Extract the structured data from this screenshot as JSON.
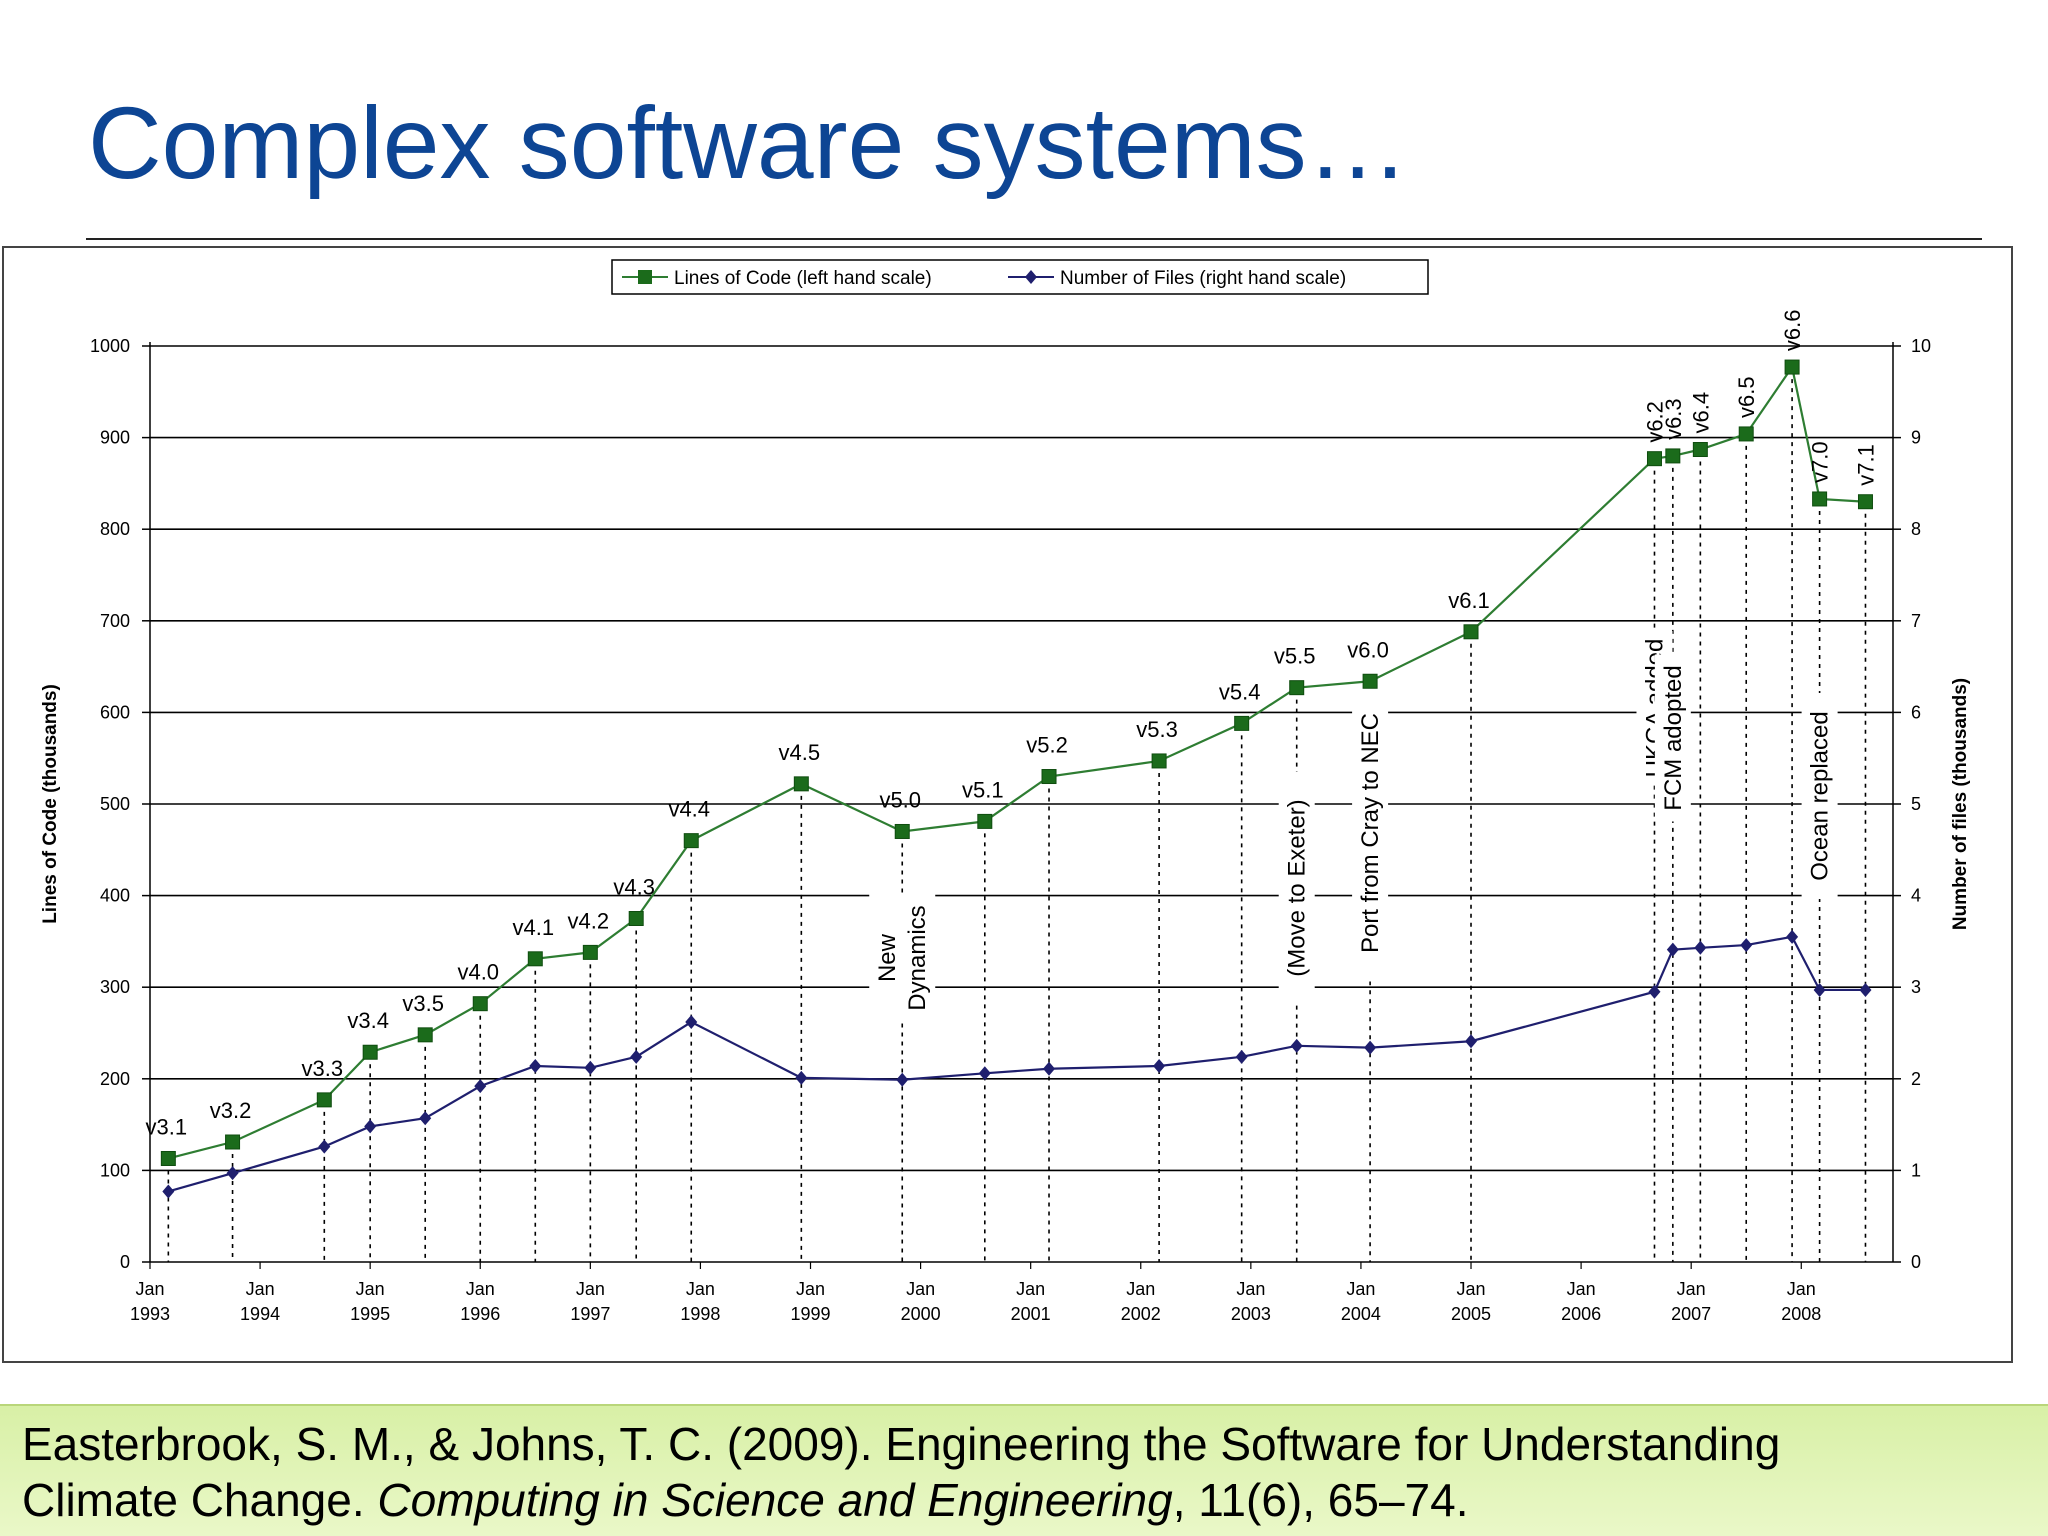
{
  "slide": {
    "title": "Complex software systems…"
  },
  "citation": {
    "line1": "Easterbrook, S. M., & Johns, T. C. (2009). Engineering the Software for Understanding",
    "line2_prefix": "Climate Change. ",
    "line2_journal": "Computing in Science and Engineering",
    "line2_suffix": ", 11(6), 65–74."
  },
  "chart_data": {
    "type": "line",
    "ylabel_left": "Lines of Code (thousands)",
    "ylabel_right": "Number of files (thousands)",
    "y_left_lim": [
      0,
      1000
    ],
    "y_left_ticks": [
      "0",
      "100",
      "200",
      "300",
      "400",
      "500",
      "600",
      "700",
      "800",
      "900",
      "1000"
    ],
    "y_right_lim": [
      0,
      10
    ],
    "y_right_ticks": [
      "0",
      "1",
      "2",
      "3",
      "4",
      "5",
      "6",
      "7",
      "8",
      "9",
      "10"
    ],
    "x_lim": [
      "1993-01",
      "2008-11"
    ],
    "x_ticks": [
      {
        "date": "1993-01",
        "line1": "Jan",
        "line2": "1993"
      },
      {
        "date": "1994-01",
        "line1": "Jan",
        "line2": "1994"
      },
      {
        "date": "1995-01",
        "line1": "Jan",
        "line2": "1995"
      },
      {
        "date": "1996-01",
        "line1": "Jan",
        "line2": "1996"
      },
      {
        "date": "1997-01",
        "line1": "Jan",
        "line2": "1997"
      },
      {
        "date": "1998-01",
        "line1": "Jan",
        "line2": "1998"
      },
      {
        "date": "1999-01",
        "line1": "Jan",
        "line2": "1999"
      },
      {
        "date": "2000-01",
        "line1": "Jan",
        "line2": "2000"
      },
      {
        "date": "2001-01",
        "line1": "Jan",
        "line2": "2001"
      },
      {
        "date": "2002-01",
        "line1": "Jan",
        "line2": "2002"
      },
      {
        "date": "2003-01",
        "line1": "Jan",
        "line2": "2003"
      },
      {
        "date": "2004-01",
        "line1": "Jan",
        "line2": "2004"
      },
      {
        "date": "2005-01",
        "line1": "Jan",
        "line2": "2005"
      },
      {
        "date": "2006-01",
        "line1": "Jan",
        "line2": "2006"
      },
      {
        "date": "2007-01",
        "line1": "Jan",
        "line2": "2007"
      },
      {
        "date": "2008-01",
        "line1": "Jan",
        "line2": "2008"
      }
    ],
    "grid": "horizontal",
    "legend_position": "top-center",
    "series": [
      {
        "name": "Lines of Code (left hand scale)",
        "axis": "left",
        "color": "#2e7d32",
        "marker": "square",
        "points": [
          {
            "x": "1993-03",
            "y": 113
          },
          {
            "x": "1993-10",
            "y": 131
          },
          {
            "x": "1994-08",
            "y": 177
          },
          {
            "x": "1995-01",
            "y": 229
          },
          {
            "x": "1995-07",
            "y": 248
          },
          {
            "x": "1996-01",
            "y": 282
          },
          {
            "x": "1996-07",
            "y": 331
          },
          {
            "x": "1997-01",
            "y": 338
          },
          {
            "x": "1997-06",
            "y": 375
          },
          {
            "x": "1997-12",
            "y": 460
          },
          {
            "x": "1998-12",
            "y": 522
          },
          {
            "x": "1999-11",
            "y": 470
          },
          {
            "x": "2000-08",
            "y": 481
          },
          {
            "x": "2001-03",
            "y": 530
          },
          {
            "x": "2002-03",
            "y": 547
          },
          {
            "x": "2002-12",
            "y": 588
          },
          {
            "x": "2003-06",
            "y": 627
          },
          {
            "x": "2004-02",
            "y": 634
          },
          {
            "x": "2005-01",
            "y": 688
          },
          {
            "x": "2006-09",
            "y": 877
          },
          {
            "x": "2006-11",
            "y": 880
          },
          {
            "x": "2007-02",
            "y": 887
          },
          {
            "x": "2007-07",
            "y": 904
          },
          {
            "x": "2007-12",
            "y": 977
          },
          {
            "x": "2008-03",
            "y": 833
          },
          {
            "x": "2008-08",
            "y": 830
          }
        ]
      },
      {
        "name": "Number of Files (right hand scale)",
        "axis": "right",
        "color": "#1f1f6e",
        "marker": "diamond",
        "points": [
          {
            "x": "1993-03",
            "y": 0.77
          },
          {
            "x": "1993-10",
            "y": 0.97
          },
          {
            "x": "1994-08",
            "y": 1.26
          },
          {
            "x": "1995-01",
            "y": 1.48
          },
          {
            "x": "1995-07",
            "y": 1.57
          },
          {
            "x": "1996-01",
            "y": 1.92
          },
          {
            "x": "1996-07",
            "y": 2.14
          },
          {
            "x": "1997-01",
            "y": 2.12
          },
          {
            "x": "1997-06",
            "y": 2.24
          },
          {
            "x": "1997-12",
            "y": 2.62
          },
          {
            "x": "1998-12",
            "y": 2.01
          },
          {
            "x": "1999-11",
            "y": 1.99
          },
          {
            "x": "2000-08",
            "y": 2.06
          },
          {
            "x": "2001-03",
            "y": 2.11
          },
          {
            "x": "2002-03",
            "y": 2.14
          },
          {
            "x": "2002-12",
            "y": 2.24
          },
          {
            "x": "2003-06",
            "y": 2.36
          },
          {
            "x": "2004-02",
            "y": 2.34
          },
          {
            "x": "2005-01",
            "y": 2.41
          },
          {
            "x": "2006-09",
            "y": 2.95
          },
          {
            "x": "2006-11",
            "y": 3.41
          },
          {
            "x": "2007-02",
            "y": 3.43
          },
          {
            "x": "2007-07",
            "y": 3.46
          },
          {
            "x": "2007-12",
            "y": 3.55
          },
          {
            "x": "2008-03",
            "y": 2.97
          },
          {
            "x": "2008-08",
            "y": 2.97
          }
        ]
      }
    ],
    "release_labels": [
      {
        "text": "v3.1",
        "x": "1993-03",
        "rotated": false
      },
      {
        "text": "v3.2",
        "x": "1993-10",
        "rotated": false
      },
      {
        "text": "v3.3",
        "x": "1994-08",
        "rotated": false
      },
      {
        "text": "v3.4",
        "x": "1995-01",
        "rotated": false
      },
      {
        "text": "v3.5",
        "x": "1995-07",
        "rotated": false
      },
      {
        "text": "v4.0",
        "x": "1996-01",
        "rotated": false
      },
      {
        "text": "v4.1",
        "x": "1996-07",
        "rotated": false
      },
      {
        "text": "v4.2",
        "x": "1997-01",
        "rotated": false
      },
      {
        "text": "v4.3",
        "x": "1997-06",
        "rotated": false
      },
      {
        "text": "v4.4",
        "x": "1997-12",
        "rotated": false
      },
      {
        "text": "v4.5",
        "x": "1998-12",
        "rotated": false
      },
      {
        "text": "v5.0",
        "x": "1999-11",
        "rotated": false
      },
      {
        "text": "v5.1",
        "x": "2000-08",
        "rotated": false
      },
      {
        "text": "v5.2",
        "x": "2001-03",
        "rotated": false
      },
      {
        "text": "v5.3",
        "x": "2002-03",
        "rotated": false
      },
      {
        "text": "v5.4",
        "x": "2002-12",
        "rotated": false
      },
      {
        "text": "v5.5",
        "x": "2003-06",
        "rotated": false
      },
      {
        "text": "v6.0",
        "x": "2004-02",
        "rotated": false
      },
      {
        "text": "v6.1",
        "x": "2005-01",
        "rotated": false
      },
      {
        "text": "v6.2",
        "x": "2006-09",
        "rotated": true
      },
      {
        "text": "v6.3",
        "x": "2006-11",
        "rotated": true
      },
      {
        "text": "v6.4",
        "x": "2007-02",
        "rotated": true
      },
      {
        "text": "v6.5",
        "x": "2007-07",
        "rotated": true
      },
      {
        "text": "v6.6",
        "x": "2007-12",
        "rotated": true
      },
      {
        "text": "v7.0",
        "x": "2008-03",
        "rotated": true
      },
      {
        "text": "v7.1",
        "x": "2008-08",
        "rotated": true
      }
    ],
    "annotations": [
      {
        "lines": [
          "New",
          "Dynamics"
        ],
        "x": "1999-11"
      },
      {
        "lines": [
          "(Move to Exeter)"
        ],
        "x": "2003-06"
      },
      {
        "lines": [
          "Port from Cray to NEC"
        ],
        "x": "2004-02"
      },
      {
        "lines": [
          "UKCA added"
        ],
        "x": "2006-09"
      },
      {
        "lines": [
          "FCM adopted"
        ],
        "x": "2006-11"
      },
      {
        "lines": [
          "Ocean replaced"
        ],
        "x": "2008-03"
      }
    ]
  }
}
